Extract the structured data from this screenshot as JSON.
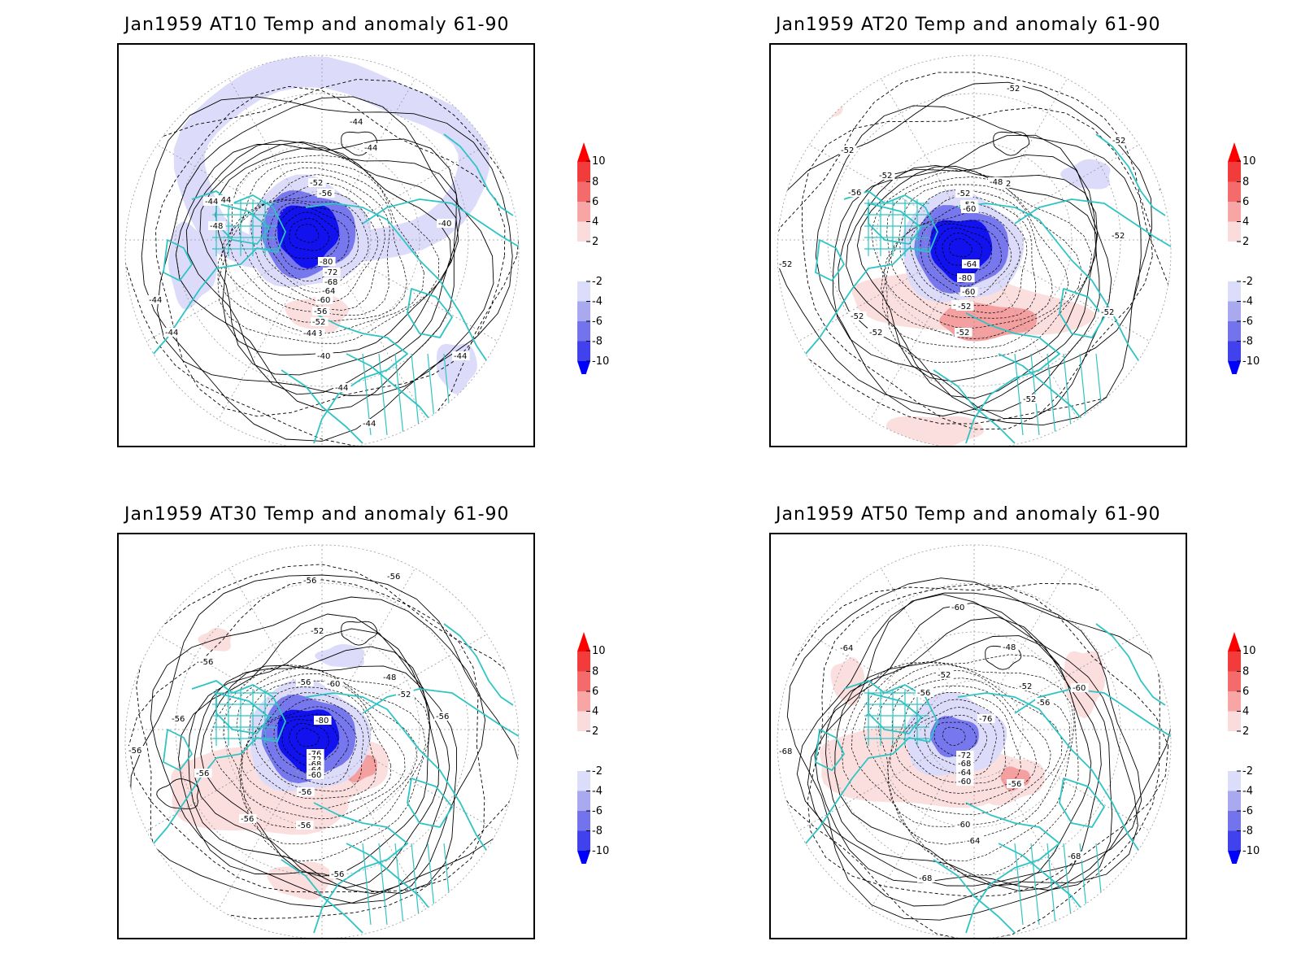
{
  "panels": [
    {
      "id": "at10",
      "title": "Jan1959 AT10 Temp and anomaly 61-90",
      "contour_labels": [
        "-44",
        "-44",
        "-52",
        "-56",
        "-44",
        "-44",
        "-40",
        "-48",
        "-80",
        "-72",
        "-68",
        "-64",
        "-60",
        "-56",
        "-52",
        "-48",
        "-44",
        "-44",
        "-44",
        "-40",
        "-44",
        "-44",
        "-44"
      ],
      "anomaly": {
        "center": "strong-negative",
        "ring": "weak-negative"
      }
    },
    {
      "id": "at20",
      "title": "Jan1959 AT20 Temp and anomaly 61-90",
      "contour_labels": [
        "-52",
        "-52",
        "-52",
        "-56",
        "-52",
        "-52",
        "-48",
        "-52",
        "-60",
        "-52",
        "-52",
        "-52",
        "-64",
        "-80",
        "-60",
        "-56",
        "-52",
        "-52",
        "-52",
        "-52",
        "-52",
        "-52",
        "-52"
      ],
      "anomaly": {
        "center": "strong-negative",
        "band": "positive"
      }
    },
    {
      "id": "at30",
      "title": "Jan1959 AT30 Temp and anomaly 61-90",
      "contour_labels": [
        "-60",
        "-56",
        "-56",
        "-52",
        "-56",
        "-56",
        "-48",
        "-52",
        "-56",
        "-60",
        "-56",
        "-80",
        "-56",
        "-56",
        "-76",
        "-72",
        "-68",
        "-64",
        "-60",
        "-56",
        "-56",
        "-56",
        "-56",
        "-56"
      ],
      "anomaly": {
        "center": "strong-negative",
        "band": "positive"
      }
    },
    {
      "id": "at50",
      "title": "Jan1959 AT50 Temp and anomaly 61-90",
      "contour_labels": [
        "-60",
        "-64",
        "-48",
        "-52",
        "-52",
        "-56",
        "-60",
        "-56",
        "-68",
        "-76",
        "-72",
        "-68",
        "-64",
        "-60",
        "-56",
        "-60",
        "-64",
        "-68",
        "-68"
      ],
      "anomaly": {
        "center": "weak-negative",
        "band": "positive"
      }
    }
  ],
  "colorbar": {
    "ticks": [
      "10",
      "8",
      "6",
      "4",
      "2",
      "-2",
      "-4",
      "-6",
      "-8",
      "-10"
    ],
    "colors": {
      "red_dark": "#ff0000",
      "red_8": "#f23b3b",
      "red_6": "#f56b6b",
      "red_4": "#f7a5a5",
      "red_2": "#fbdcdc",
      "white": "#ffffff",
      "blue_2": "#dcdcfb",
      "blue_4": "#a9a9f0",
      "blue_6": "#7373ec",
      "blue_8": "#4141ed",
      "blue_dark": "#0000ff"
    }
  },
  "colors": {
    "coast": "#2ec4c4",
    "contour": "#000000",
    "grid": "#999999",
    "anom_neg_strong": "#1212ee",
    "anom_neg_mid": "#7878ee",
    "anom_neg_weak": "#dcdcfa",
    "anom_pos_weak": "#fbdede",
    "anom_pos_mid": "#f5a0a0"
  }
}
